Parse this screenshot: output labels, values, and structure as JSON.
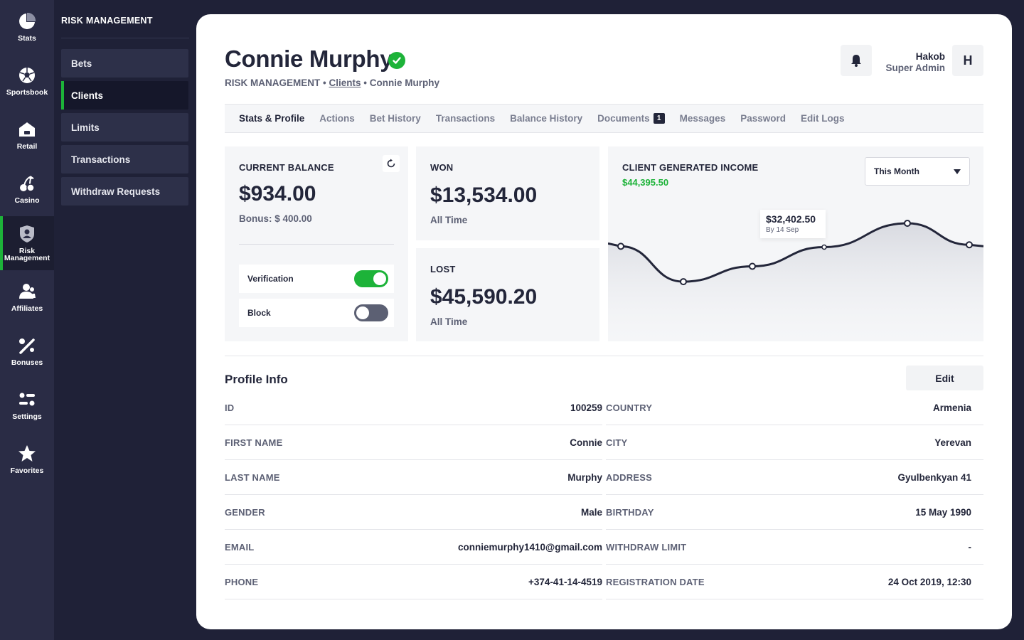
{
  "rail": [
    {
      "label": "Stats",
      "icon": "pie-chart-icon"
    },
    {
      "label": "Sportsbook",
      "icon": "soccer-ball-icon"
    },
    {
      "label": "Retail",
      "icon": "store-icon"
    },
    {
      "label": "Casino",
      "icon": "cherries-icon"
    },
    {
      "label": "Risk\nManagement",
      "icon": "shield-user-icon"
    },
    {
      "label": "Affiliates",
      "icon": "users-icon"
    },
    {
      "label": "Bonuses",
      "icon": "percent-icon"
    },
    {
      "label": "Settings",
      "icon": "sliders-icon"
    },
    {
      "label": "Favorites",
      "icon": "star-icon"
    }
  ],
  "subnav": {
    "title": "RISK MANAGEMENT",
    "items": [
      {
        "label": "Bets"
      },
      {
        "label": "Clients"
      },
      {
        "label": "Limits"
      },
      {
        "label": "Transactions"
      },
      {
        "label": "Withdraw Requests"
      }
    ],
    "active_index": 1
  },
  "header": {
    "title": "Connie Murphy",
    "breadcrumb": {
      "root": "RISK MANAGEMENT • ",
      "link": "Clients",
      "current": " • Connie Murphy"
    },
    "user": {
      "name": "Hakob",
      "role": "Super Admin",
      "initial": "H"
    }
  },
  "tabs": [
    {
      "label": "Stats & Profile"
    },
    {
      "label": "Actions"
    },
    {
      "label": "Bet History"
    },
    {
      "label": "Transactions"
    },
    {
      "label": "Balance History"
    },
    {
      "label": "Documents",
      "badge": "1"
    },
    {
      "label": "Messages"
    },
    {
      "label": "Password"
    },
    {
      "label": "Edit Logs"
    }
  ],
  "balance": {
    "label": "CURRENT BALANCE",
    "amount": "$934.00",
    "bonus": "Bonus: $ 400.00",
    "verification_label": "Verification",
    "verification_on": true,
    "block_label": "Block",
    "block_on": false
  },
  "won": {
    "label": "WON",
    "amount": "$13,534.00",
    "period": "All Time"
  },
  "lost": {
    "label": "LOST",
    "amount": "$45,590.20",
    "period": "All Time"
  },
  "income": {
    "label": "CLIENT GENERATED INCOME",
    "value": "$44,395.50",
    "period_select": "This Month",
    "tooltip": {
      "value": "$32,402.50",
      "sub": "By 14 Sep"
    }
  },
  "chart_data": {
    "type": "line",
    "y": [
      0.7,
      0.24,
      0.44,
      0.69,
      1.0,
      0.72
    ],
    "highlight_index": 3,
    "tooltip_value": "$32,402.50",
    "tooltip_label": "By 14 Sep",
    "grid": false,
    "area_fill": true
  },
  "profile": {
    "title": "Profile Info",
    "edit_label": "Edit",
    "left": [
      {
        "key": "ID",
        "value": "100259"
      },
      {
        "key": "FIRST NAME",
        "value": "Connie"
      },
      {
        "key": "LAST NAME",
        "value": "Murphy"
      },
      {
        "key": "GENDER",
        "value": "Male"
      },
      {
        "key": "EMAIL",
        "value": "conniemurphy1410@gmail.com"
      },
      {
        "key": "PHONE",
        "value": "+374-41-14-4519"
      }
    ],
    "right": [
      {
        "key": "COUNTRY",
        "value": "Armenia"
      },
      {
        "key": "CITY",
        "value": "Yerevan"
      },
      {
        "key": "ADDRESS",
        "value": "Gyulbenkyan 41"
      },
      {
        "key": "BIRTHDAY",
        "value": "15 May 1990"
      },
      {
        "key": "WITHDRAW LIMIT",
        "value": "-"
      },
      {
        "key": "REGISTRATION DATE",
        "value": "24 Oct 2019, 12:30"
      }
    ]
  },
  "colors": {
    "accent": "#1db339",
    "dark": "#23263a",
    "sidebar": "#2a2c45"
  }
}
